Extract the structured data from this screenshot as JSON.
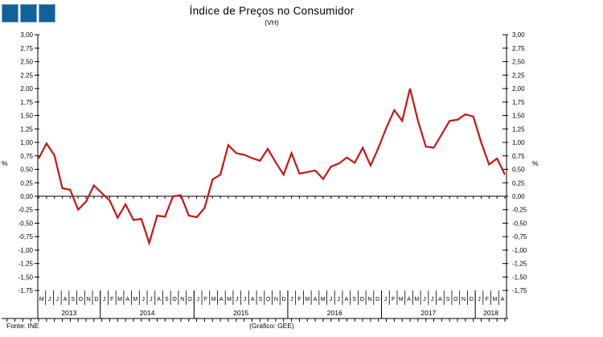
{
  "logo": {
    "square_color": "#11629B",
    "square_border": "#7EA6C6"
  },
  "title": "Índice de Preços no Consumidor",
  "subtitle": "(VH)",
  "axis_unit_left": "%",
  "axis_unit_right": "%",
  "footer": {
    "source": "Fonte: INE",
    "credit": "(Gráfico: GEE)"
  },
  "chart_data": {
    "type": "line",
    "title": "Índice de Preços no Consumidor",
    "subtitle": "(VH)",
    "ylabel": "%",
    "ylim": [
      -1.75,
      3.0
    ],
    "ytick_step": 0.25,
    "y_ticks": [
      "3,00",
      "2,75",
      "2,50",
      "2,25",
      "2,00",
      "1,75",
      "1,50",
      "1,25",
      "1,00",
      "0,75",
      "0,50",
      "0,25",
      "0,00",
      "-0,25",
      "-0,50",
      "-0,75",
      "-1,00",
      "-1,25",
      "-1,50",
      "-1,75"
    ],
    "grid": false,
    "legend": "none",
    "line_color": "#CC1414",
    "axis_color": "#000000",
    "months": [
      "M",
      "J",
      "J",
      "A",
      "S",
      "O",
      "N",
      "D",
      "J",
      "F",
      "M",
      "A",
      "M",
      "J",
      "J",
      "A",
      "S",
      "O",
      "N",
      "D",
      "J",
      "F",
      "M",
      "A",
      "M",
      "J",
      "J",
      "A",
      "S",
      "O",
      "N",
      "D",
      "J",
      "F",
      "M",
      "A",
      "M",
      "J",
      "J",
      "A",
      "S",
      "O",
      "N",
      "D",
      "J",
      "F",
      "M",
      "A",
      "M",
      "J",
      "J",
      "A",
      "S",
      "O",
      "N",
      "D",
      "J",
      "F",
      "M",
      "A"
    ],
    "years": [
      {
        "label": "2013",
        "months": 8
      },
      {
        "label": "2014",
        "months": 12
      },
      {
        "label": "2015",
        "months": 12
      },
      {
        "label": "2016",
        "months": 12
      },
      {
        "label": "2017",
        "months": 12
      },
      {
        "label": "2018",
        "months": 4
      }
    ],
    "values": [
      0.7,
      0.98,
      0.76,
      0.15,
      0.12,
      -0.25,
      -0.1,
      0.2,
      0.06,
      -0.08,
      -0.4,
      -0.15,
      -0.44,
      -0.42,
      -0.87,
      -0.36,
      -0.38,
      0.0,
      0.02,
      -0.36,
      -0.39,
      -0.22,
      0.31,
      0.4,
      0.95,
      0.8,
      0.77,
      0.71,
      0.66,
      0.88,
      0.63,
      0.4,
      0.8,
      0.42,
      0.45,
      0.48,
      0.32,
      0.55,
      0.61,
      0.72,
      0.62,
      0.9,
      0.57,
      0.9,
      1.27,
      1.6,
      1.4,
      2.0,
      1.4,
      0.92,
      0.9,
      1.15,
      1.4,
      1.42,
      1.52,
      1.48,
      1.0,
      0.59,
      0.7,
      0.4
    ]
  }
}
